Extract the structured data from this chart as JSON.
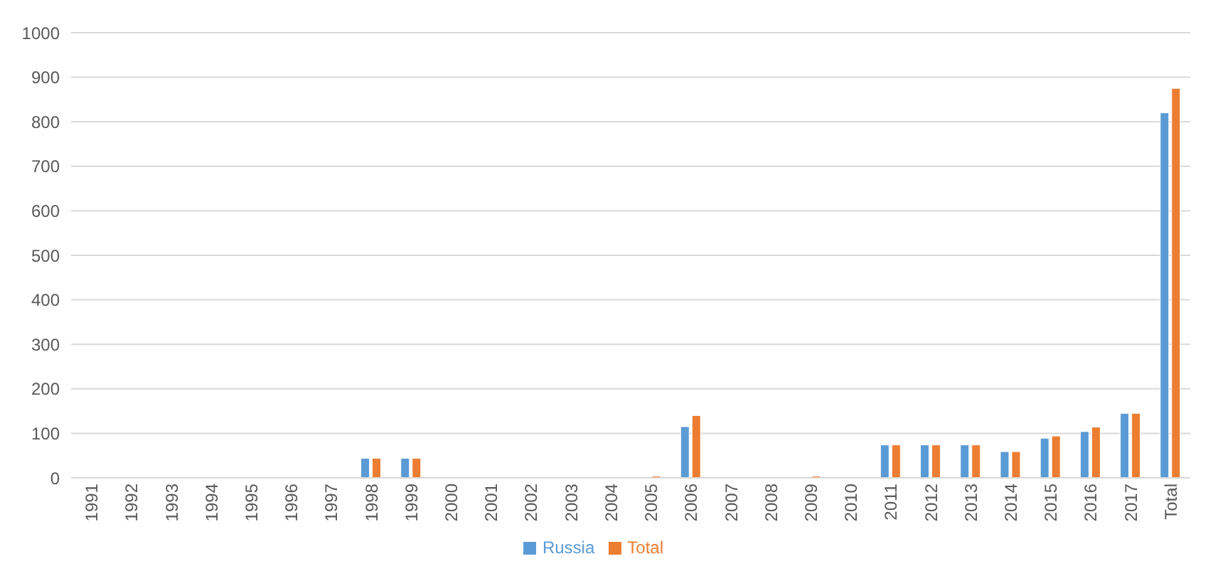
{
  "chart_data": {
    "type": "bar",
    "categories": [
      "1991",
      "1992",
      "1993",
      "1994",
      "1995",
      "1996",
      "1997",
      "1998",
      "1999",
      "2000",
      "2001",
      "2002",
      "2003",
      "2004",
      "2005",
      "2006",
      "2007",
      "2008",
      "2009",
      "2010",
      "2011",
      "2012",
      "2013",
      "2014",
      "2015",
      "2016",
      "2017",
      "Total"
    ],
    "series": [
      {
        "name": "Russia",
        "color": "#5b9bd5",
        "values": [
          0,
          0,
          0,
          0,
          0,
          0,
          0,
          44,
          44,
          0,
          0,
          0,
          0,
          0,
          0,
          115,
          0,
          0,
          0,
          0,
          74,
          74,
          74,
          59,
          89,
          104,
          145,
          820
        ]
      },
      {
        "name": "Total",
        "color": "#ed7d31",
        "values": [
          0,
          0,
          0,
          0,
          0,
          0,
          0,
          44,
          44,
          0,
          0,
          0,
          0,
          0,
          4,
          140,
          0,
          0,
          4,
          0,
          74,
          74,
          74,
          59,
          94,
          114,
          145,
          875
        ]
      }
    ],
    "ylim": [
      0,
      1000
    ],
    "yticks": [
      0,
      100,
      200,
      300,
      400,
      500,
      600,
      700,
      800,
      900,
      1000
    ],
    "grid": "y",
    "legend": "bottom"
  }
}
